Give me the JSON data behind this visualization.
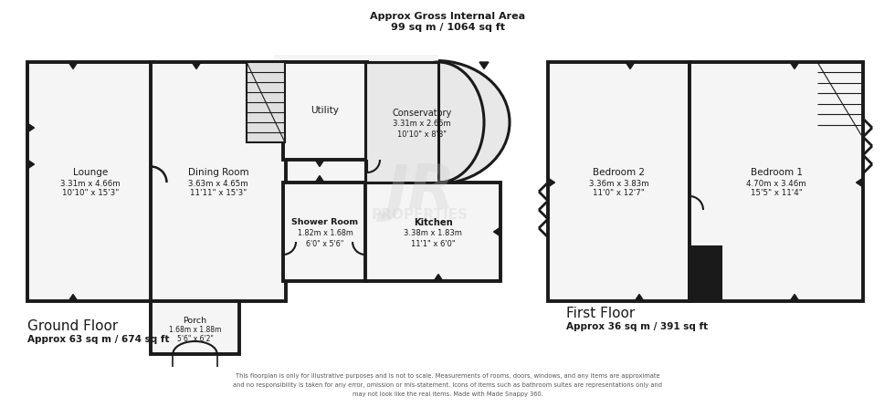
{
  "title_top_line1": "Approx Gross Internal Area",
  "title_top_line2": "99 sq m / 1064 sq ft",
  "ground_floor_label": "Ground Floor",
  "ground_floor_area": "Approx 63 sq m / 674 sq ft",
  "first_floor_label": "First Floor",
  "first_floor_area": "Approx 36 sq m / 391 sq ft",
  "disclaimer_line1": "This floorplan is only for illustrative purposes and is not to scale. Measurements of rooms, doors, windows, and any items are approximate",
  "disclaimer_line2": "and no responsibility is taken for any error, omission or mis-statement. Icons of items such as bathroom suites are representations only and",
  "disclaimer_line3": "may not look like the real items. Made with Made Snappy 360.",
  "bg_color": "#ffffff",
  "wall_color": "#1a1a1a",
  "room_fill": "#f5f5f5",
  "stair_fill": "#e0e0e0",
  "conservatory_fill": "#e8e8e8",
  "watermark_color": "#cccccc",
  "watermark_alpha": 0.3
}
